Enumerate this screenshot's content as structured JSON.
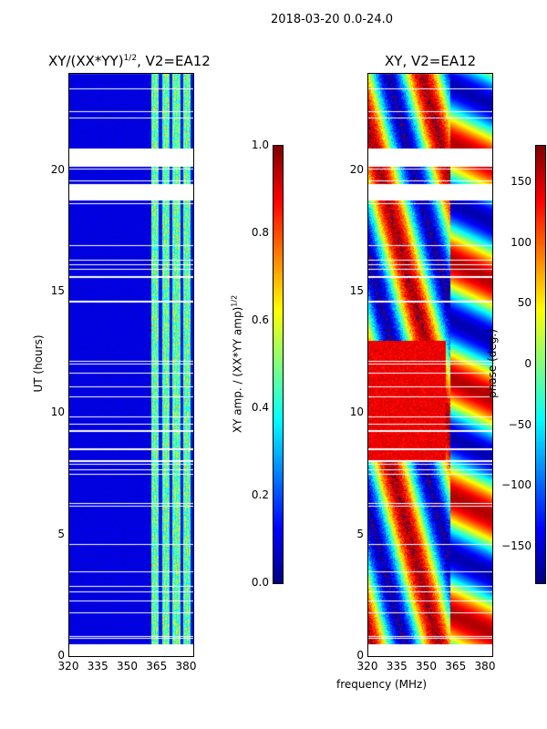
{
  "figure_title": "2018-03-20 0.0-24.0",
  "chart_data": [
    {
      "type": "heatmap",
      "title": "XY/(XX*YY)^1/2, V2=EA12",
      "title_main": "XY/(XX*YY)",
      "title_sup": "1/2",
      "title_tail": ", V2=EA12",
      "xlabel": "",
      "ylabel": "UT (hours)",
      "xlim": [
        320,
        384
      ],
      "ylim": [
        0,
        24
      ],
      "xticks": [
        "320",
        "335",
        "350",
        "365",
        "380"
      ],
      "yticks": [
        "0",
        "5",
        "10",
        "15",
        "20"
      ],
      "data_time_range": [
        0.5,
        24
      ],
      "bright_channel_range_mhz": [
        362,
        383
      ],
      "colorbar": {
        "label_main": "XY amp. / (XX*YY amp)",
        "label_sup": "1/2",
        "range": [
          0,
          1
        ],
        "ticks": [
          "0.0",
          "0.2",
          "0.4",
          "0.6",
          "0.8",
          "1.0"
        ]
      }
    },
    {
      "type": "heatmap",
      "title": "XY, V2=EA12",
      "xlabel": "frequency (MHz)",
      "ylabel": "",
      "xlim": [
        320,
        384
      ],
      "ylim": [
        0,
        24
      ],
      "xticks": [
        "320",
        "335",
        "350",
        "365",
        "380"
      ],
      "yticks": [
        "0",
        "5",
        "10",
        "15",
        "20"
      ],
      "data_time_range": [
        0.5,
        24
      ],
      "colorbar": {
        "label": "phase (deg.)",
        "range": [
          -180,
          180
        ],
        "ticks": [
          "-150",
          "-100",
          "-50",
          "0",
          "50",
          "100",
          "150"
        ]
      }
    }
  ],
  "flagged_hours": [
    [
      20.2,
      20.9
    ],
    [
      18.8,
      19.4
    ],
    [
      15.6,
      15.65
    ],
    [
      8.5,
      8.55
    ],
    [
      0,
      0.5
    ]
  ]
}
